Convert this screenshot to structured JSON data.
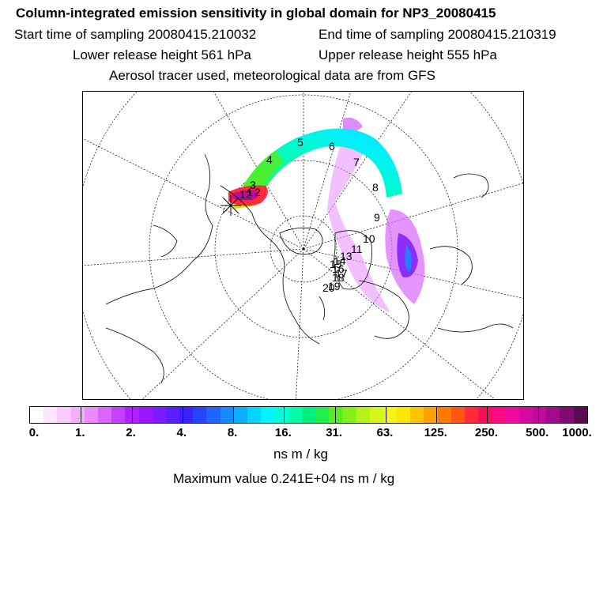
{
  "title": "Column-integrated emission sensitivity in global domain for NP3_20080415",
  "sampling": {
    "start": "Start time of sampling 20080415.210032",
    "end": "End time of sampling 20080415.210319"
  },
  "release": {
    "lower": "Lower release height  561 hPa",
    "upper": "Upper release height  555 hPa"
  },
  "tracer_note": "Aerosol tracer used, meteorological data are from GFS",
  "colorbar": {
    "labels": [
      "0.",
      "1.",
      "2.",
      "4.",
      "8.",
      "16.",
      "31.",
      "63.",
      "125.",
      "250.",
      "500.",
      "1000."
    ],
    "units": "ns m / kg",
    "colors": [
      "#ffffff",
      "#fde6ff",
      "#f9ccff",
      "#f3b0ff",
      "#e88cff",
      "#d966ff",
      "#c640ff",
      "#b31fff",
      "#9c16ff",
      "#7d1aff",
      "#5a1eff",
      "#3a22ff",
      "#2643ff",
      "#1f66ff",
      "#158bff",
      "#0aafff",
      "#00d6ff",
      "#00f5ff",
      "#00ffd8",
      "#00ffa8",
      "#00f080",
      "#1fee4d",
      "#52ee21",
      "#85f018",
      "#b2f418",
      "#d7f71a",
      "#f3f31a",
      "#ffe600",
      "#ffc400",
      "#ffa000",
      "#ff7a00",
      "#ff5612",
      "#ff2a3a",
      "#ff0b5c",
      "#ff0a84",
      "#f00a9e",
      "#d8099e",
      "#bf0a9b",
      "#a20a8c",
      "#800a72",
      "#5a0a52"
    ]
  },
  "max_value": "Maximum value  0.241E+04 ns m / kg",
  "trajectory_labels": [
    "1",
    "2",
    "3",
    "4",
    "5",
    "6",
    "7",
    "8",
    "9",
    "10",
    "11",
    "12",
    "13",
    "14",
    "15",
    "16",
    "17",
    "18",
    "19",
    "20"
  ]
}
